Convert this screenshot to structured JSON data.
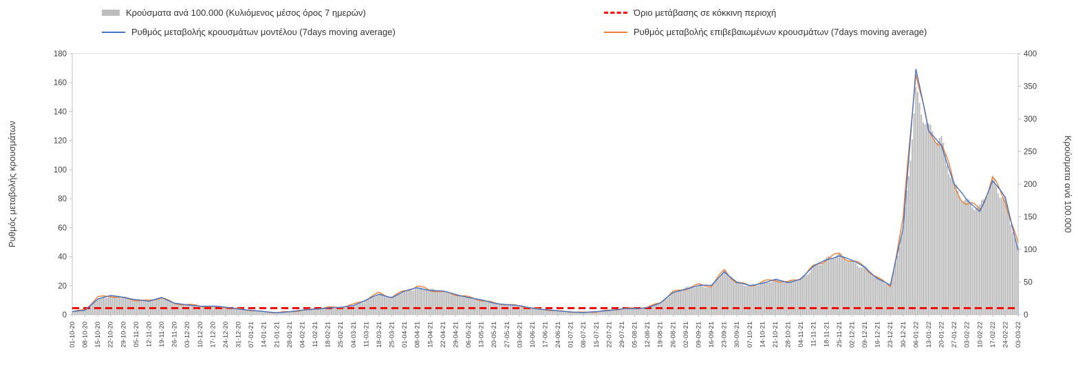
{
  "chart_data": {
    "type": "combo",
    "x": [
      "01-10-20",
      "08-10-20",
      "15-10-20",
      "22-10-20",
      "29-10-20",
      "05-11-20",
      "12-11-20",
      "19-11-20",
      "26-11-20",
      "03-12-20",
      "10-12-20",
      "17-12-20",
      "24-12-20",
      "31-12-20",
      "07-01-21",
      "14-01-21",
      "21-01-21",
      "28-01-21",
      "04-02-21",
      "11-02-21",
      "18-02-21",
      "25-02-21",
      "04-03-21",
      "11-03-21",
      "18-03-21",
      "25-03-21",
      "01-04-21",
      "08-04-21",
      "15-04-21",
      "22-04-21",
      "29-04-21",
      "06-05-21",
      "13-05-21",
      "20-05-21",
      "27-05-21",
      "03-06-21",
      "10-06-21",
      "17-06-21",
      "24-06-21",
      "01-07-21",
      "08-07-21",
      "15-07-21",
      "22-07-21",
      "29-07-21",
      "05-08-21",
      "12-08-21",
      "19-08-21",
      "26-08-21",
      "02-09-21",
      "09-09-21",
      "16-09-21",
      "23-09-21",
      "30-09-21",
      "07-10-21",
      "14-10-21",
      "21-10-21",
      "28-10-21",
      "04-11-21",
      "11-11-21",
      "18-11-21",
      "25-11-21",
      "02-12-21",
      "09-12-21",
      "16-12-21",
      "23-12-21",
      "30-12-21",
      "06-01-22",
      "13-01-22",
      "20-01-22",
      "27-01-22",
      "03-02-22",
      "10-02-22",
      "17-02-22",
      "24-02-22",
      "03-03-22"
    ],
    "series": [
      {
        "name": "Κρούσματα ανά 100.000 (Κυλιόμενος μέσος όρος 7 ημερών)",
        "type": "bar",
        "axis": "right",
        "color": "#bdbdbd",
        "values": [
          4,
          7,
          24,
          29,
          27,
          23,
          20,
          27,
          18,
          14,
          13,
          13,
          11,
          9,
          7,
          4,
          3,
          4,
          7,
          9,
          10,
          11,
          14,
          22,
          31,
          27,
          36,
          41,
          38,
          36,
          31,
          27,
          22,
          18,
          16,
          13,
          10,
          8,
          6,
          4,
          3,
          4,
          7,
          9,
          9,
          11,
          18,
          33,
          40,
          44,
          44,
          67,
          49,
          44,
          49,
          53,
          49,
          56,
          73,
          84,
          91,
          82,
          73,
          56,
          44,
          133,
          340,
          278,
          262,
          200,
          173,
          160,
          204,
          178,
          100
        ]
      },
      {
        "name": "Όριο μετάβασης σε κόκκινη περιοχή",
        "type": "threshold",
        "axis": "right",
        "color": "#ff0000",
        "value": 10
      },
      {
        "name": "Ρυθμός μεταβολής κρουσμάτων μοντέλου (7days moving average)",
        "type": "line",
        "axis": "left",
        "color": "#4472c4",
        "values": [
          2,
          3,
          11,
          13,
          12,
          10.5,
          9,
          12,
          8,
          6.5,
          6,
          6,
          5,
          4,
          3,
          2,
          1.5,
          2,
          3,
          4,
          4.5,
          5,
          6.5,
          10,
          14,
          12,
          16,
          18.5,
          17,
          16,
          14,
          12,
          10,
          8,
          7,
          6,
          4.5,
          3.5,
          2.5,
          2,
          1.5,
          2,
          3,
          4,
          4,
          5,
          8,
          15,
          18,
          20,
          20,
          30,
          22,
          20,
          22,
          24,
          22,
          25,
          33,
          38,
          41,
          37,
          33,
          25,
          20,
          60,
          170,
          125,
          118,
          90,
          78,
          72,
          92,
          80,
          45
        ]
      },
      {
        "name": "Ρυθμός μεταβολής επιβεβαιωμένων κρουσμάτων (7days moving average)",
        "type": "line",
        "axis": "left",
        "color": "#ed7d31",
        "values": [
          2,
          3.5,
          12,
          13,
          11.5,
          10,
          9.5,
          12,
          7.5,
          7,
          6,
          5.5,
          5,
          4,
          3,
          2,
          1.5,
          2,
          3,
          4,
          5,
          5,
          7,
          10.5,
          15,
          12,
          16.5,
          19.5,
          17,
          15.5,
          14,
          12,
          10,
          8,
          7,
          6,
          4.5,
          3.5,
          2.5,
          2,
          1.5,
          2,
          3,
          4,
          4.5,
          5,
          8.5,
          15.5,
          18,
          20.5,
          20,
          30.5,
          22,
          20,
          22.5,
          24,
          22,
          25.5,
          33,
          38.5,
          41.5,
          37,
          33,
          25,
          20,
          65,
          171,
          123,
          120,
          88,
          76,
          73,
          93,
          79,
          48
        ]
      }
    ],
    "left_axis": {
      "title": "Ρυθμός μεταβολής κρουσμάτων",
      "min": 0,
      "max": 180,
      "step": 20
    },
    "right_axis": {
      "title": "Κρούσματα ανά 100.000",
      "min": 0,
      "max": 400,
      "step": 50
    },
    "grid": false,
    "legend_position": "top",
    "background": "#ffffff"
  }
}
